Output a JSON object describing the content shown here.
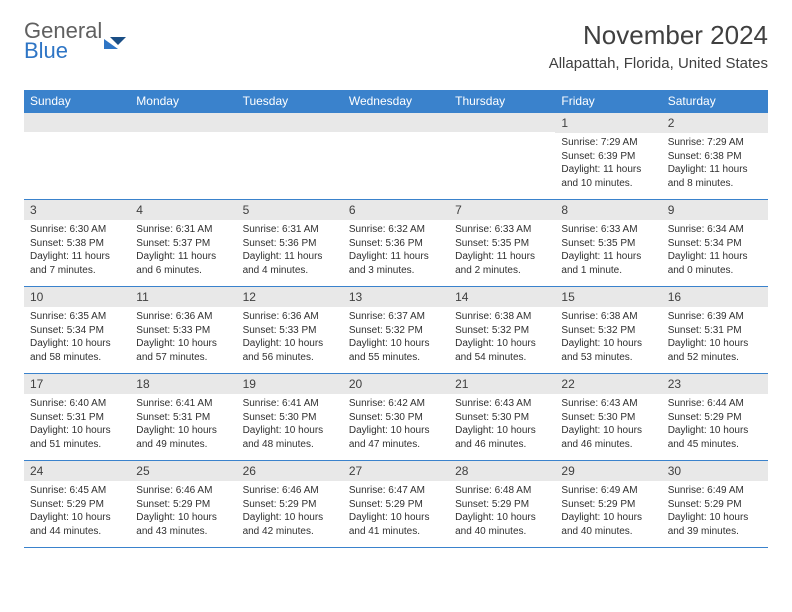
{
  "logo": {
    "line1": "General",
    "line2": "Blue"
  },
  "title": "November 2024",
  "location": "Allapattah, Florida, United States",
  "colors": {
    "header_bg": "#3a82cc",
    "header_text": "#ffffff",
    "row_separator": "#3a82cc",
    "daynum_bg": "#e8e8e8",
    "text": "#303030",
    "logo_gray": "#606060",
    "logo_blue": "#2e75c5",
    "background": "#ffffff"
  },
  "fonts": {
    "family": "Arial",
    "month_title_size": 26,
    "location_size": 15,
    "dow_size": 12,
    "daynum_size": 12,
    "body_size": 10
  },
  "daysOfWeek": [
    "Sunday",
    "Monday",
    "Tuesday",
    "Wednesday",
    "Thursday",
    "Friday",
    "Saturday"
  ],
  "weeks": [
    [
      {
        "n": "",
        "sunrise": "",
        "sunset": "",
        "daylight": ""
      },
      {
        "n": "",
        "sunrise": "",
        "sunset": "",
        "daylight": ""
      },
      {
        "n": "",
        "sunrise": "",
        "sunset": "",
        "daylight": ""
      },
      {
        "n": "",
        "sunrise": "",
        "sunset": "",
        "daylight": ""
      },
      {
        "n": "",
        "sunrise": "",
        "sunset": "",
        "daylight": ""
      },
      {
        "n": "1",
        "sunrise": "Sunrise: 7:29 AM",
        "sunset": "Sunset: 6:39 PM",
        "daylight": "Daylight: 11 hours and 10 minutes."
      },
      {
        "n": "2",
        "sunrise": "Sunrise: 7:29 AM",
        "sunset": "Sunset: 6:38 PM",
        "daylight": "Daylight: 11 hours and 8 minutes."
      }
    ],
    [
      {
        "n": "3",
        "sunrise": "Sunrise: 6:30 AM",
        "sunset": "Sunset: 5:38 PM",
        "daylight": "Daylight: 11 hours and 7 minutes."
      },
      {
        "n": "4",
        "sunrise": "Sunrise: 6:31 AM",
        "sunset": "Sunset: 5:37 PM",
        "daylight": "Daylight: 11 hours and 6 minutes."
      },
      {
        "n": "5",
        "sunrise": "Sunrise: 6:31 AM",
        "sunset": "Sunset: 5:36 PM",
        "daylight": "Daylight: 11 hours and 4 minutes."
      },
      {
        "n": "6",
        "sunrise": "Sunrise: 6:32 AM",
        "sunset": "Sunset: 5:36 PM",
        "daylight": "Daylight: 11 hours and 3 minutes."
      },
      {
        "n": "7",
        "sunrise": "Sunrise: 6:33 AM",
        "sunset": "Sunset: 5:35 PM",
        "daylight": "Daylight: 11 hours and 2 minutes."
      },
      {
        "n": "8",
        "sunrise": "Sunrise: 6:33 AM",
        "sunset": "Sunset: 5:35 PM",
        "daylight": "Daylight: 11 hours and 1 minute."
      },
      {
        "n": "9",
        "sunrise": "Sunrise: 6:34 AM",
        "sunset": "Sunset: 5:34 PM",
        "daylight": "Daylight: 11 hours and 0 minutes."
      }
    ],
    [
      {
        "n": "10",
        "sunrise": "Sunrise: 6:35 AM",
        "sunset": "Sunset: 5:34 PM",
        "daylight": "Daylight: 10 hours and 58 minutes."
      },
      {
        "n": "11",
        "sunrise": "Sunrise: 6:36 AM",
        "sunset": "Sunset: 5:33 PM",
        "daylight": "Daylight: 10 hours and 57 minutes."
      },
      {
        "n": "12",
        "sunrise": "Sunrise: 6:36 AM",
        "sunset": "Sunset: 5:33 PM",
        "daylight": "Daylight: 10 hours and 56 minutes."
      },
      {
        "n": "13",
        "sunrise": "Sunrise: 6:37 AM",
        "sunset": "Sunset: 5:32 PM",
        "daylight": "Daylight: 10 hours and 55 minutes."
      },
      {
        "n": "14",
        "sunrise": "Sunrise: 6:38 AM",
        "sunset": "Sunset: 5:32 PM",
        "daylight": "Daylight: 10 hours and 54 minutes."
      },
      {
        "n": "15",
        "sunrise": "Sunrise: 6:38 AM",
        "sunset": "Sunset: 5:32 PM",
        "daylight": "Daylight: 10 hours and 53 minutes."
      },
      {
        "n": "16",
        "sunrise": "Sunrise: 6:39 AM",
        "sunset": "Sunset: 5:31 PM",
        "daylight": "Daylight: 10 hours and 52 minutes."
      }
    ],
    [
      {
        "n": "17",
        "sunrise": "Sunrise: 6:40 AM",
        "sunset": "Sunset: 5:31 PM",
        "daylight": "Daylight: 10 hours and 51 minutes."
      },
      {
        "n": "18",
        "sunrise": "Sunrise: 6:41 AM",
        "sunset": "Sunset: 5:31 PM",
        "daylight": "Daylight: 10 hours and 49 minutes."
      },
      {
        "n": "19",
        "sunrise": "Sunrise: 6:41 AM",
        "sunset": "Sunset: 5:30 PM",
        "daylight": "Daylight: 10 hours and 48 minutes."
      },
      {
        "n": "20",
        "sunrise": "Sunrise: 6:42 AM",
        "sunset": "Sunset: 5:30 PM",
        "daylight": "Daylight: 10 hours and 47 minutes."
      },
      {
        "n": "21",
        "sunrise": "Sunrise: 6:43 AM",
        "sunset": "Sunset: 5:30 PM",
        "daylight": "Daylight: 10 hours and 46 minutes."
      },
      {
        "n": "22",
        "sunrise": "Sunrise: 6:43 AM",
        "sunset": "Sunset: 5:30 PM",
        "daylight": "Daylight: 10 hours and 46 minutes."
      },
      {
        "n": "23",
        "sunrise": "Sunrise: 6:44 AM",
        "sunset": "Sunset: 5:29 PM",
        "daylight": "Daylight: 10 hours and 45 minutes."
      }
    ],
    [
      {
        "n": "24",
        "sunrise": "Sunrise: 6:45 AM",
        "sunset": "Sunset: 5:29 PM",
        "daylight": "Daylight: 10 hours and 44 minutes."
      },
      {
        "n": "25",
        "sunrise": "Sunrise: 6:46 AM",
        "sunset": "Sunset: 5:29 PM",
        "daylight": "Daylight: 10 hours and 43 minutes."
      },
      {
        "n": "26",
        "sunrise": "Sunrise: 6:46 AM",
        "sunset": "Sunset: 5:29 PM",
        "daylight": "Daylight: 10 hours and 42 minutes."
      },
      {
        "n": "27",
        "sunrise": "Sunrise: 6:47 AM",
        "sunset": "Sunset: 5:29 PM",
        "daylight": "Daylight: 10 hours and 41 minutes."
      },
      {
        "n": "28",
        "sunrise": "Sunrise: 6:48 AM",
        "sunset": "Sunset: 5:29 PM",
        "daylight": "Daylight: 10 hours and 40 minutes."
      },
      {
        "n": "29",
        "sunrise": "Sunrise: 6:49 AM",
        "sunset": "Sunset: 5:29 PM",
        "daylight": "Daylight: 10 hours and 40 minutes."
      },
      {
        "n": "30",
        "sunrise": "Sunrise: 6:49 AM",
        "sunset": "Sunset: 5:29 PM",
        "daylight": "Daylight: 10 hours and 39 minutes."
      }
    ]
  ]
}
